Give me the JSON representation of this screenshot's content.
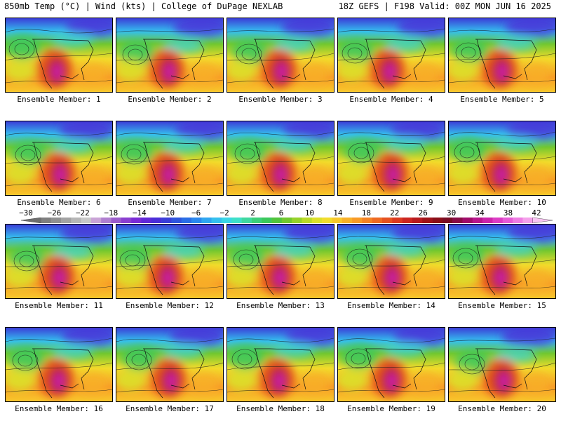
{
  "header": {
    "left_title": "850mb Temp (°C) | Wind (kts) | College of DuPage NEXLAB",
    "right_title": "18Z GEFS | F198 Valid: 00Z MON JUN 16 2025"
  },
  "members": [
    {
      "label": "Ensemble Member: 1"
    },
    {
      "label": "Ensemble Member: 2"
    },
    {
      "label": "Ensemble Member: 3"
    },
    {
      "label": "Ensemble Member: 4"
    },
    {
      "label": "Ensemble Member: 5"
    },
    {
      "label": "Ensemble Member: 6"
    },
    {
      "label": "Ensemble Member: 7"
    },
    {
      "label": "Ensemble Member: 8"
    },
    {
      "label": "Ensemble Member: 9"
    },
    {
      "label": "Ensemble Member: 10"
    },
    {
      "label": "Ensemble Member: 11"
    },
    {
      "label": "Ensemble Member: 12"
    },
    {
      "label": "Ensemble Member: 13"
    },
    {
      "label": "Ensemble Member: 14"
    },
    {
      "label": "Ensemble Member: 15"
    },
    {
      "label": "Ensemble Member: 16"
    },
    {
      "label": "Ensemble Member: 17"
    },
    {
      "label": "Ensemble Member: 18"
    },
    {
      "label": "Ensemble Member: 19"
    },
    {
      "label": "Ensemble Member: 20"
    }
  ],
  "colorbar": {
    "labels": [
      "−30",
      "−26",
      "−22",
      "−18",
      "−14",
      "−10",
      "−6",
      "−2",
      "2",
      "6",
      "10",
      "14",
      "18",
      "22",
      "26",
      "30",
      "34",
      "38",
      "42"
    ],
    "colors": [
      "#6e6e6e",
      "#7f7f7f",
      "#909090",
      "#a3a3a3",
      "#b6b6b6",
      "#c8c8c8",
      "#c9a3d6",
      "#b07fd0",
      "#9a5ccc",
      "#8a3fd0",
      "#7a2bd6",
      "#6028d8",
      "#4a2ed8",
      "#3a3ed8",
      "#2f55de",
      "#2a6ee6",
      "#2a88ee",
      "#2fa6f0",
      "#35c0ee",
      "#3ad6e6",
      "#3ee0c8",
      "#40d8a0",
      "#3ccf7a",
      "#3cc85c",
      "#52c43c",
      "#72c82e",
      "#96d22a",
      "#bada28",
      "#dce02a",
      "#f2dc2c",
      "#f8c82c",
      "#f8b028",
      "#f89a26",
      "#f48224",
      "#ee6a22",
      "#e65220",
      "#dc3a20",
      "#cc2620",
      "#b81a1e",
      "#a01218",
      "#8a0e18",
      "#7a0c24",
      "#8a0c46",
      "#a00c6a",
      "#b8168c",
      "#cc24aa",
      "#dc3cc4",
      "#e65ad6",
      "#ee7ce2",
      "#f4a0ea",
      "#f8c4f2"
    ]
  }
}
